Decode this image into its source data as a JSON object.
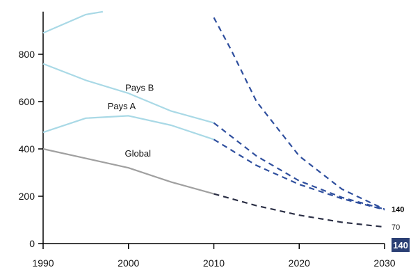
{
  "chart_data": {
    "type": "line",
    "title": "",
    "xlabel": "",
    "ylabel": "",
    "xlim": [
      1990,
      2030
    ],
    "ylim": [
      0,
      980
    ],
    "x_ticks": [
      1990,
      2000,
      2010,
      2020,
      2030
    ],
    "y_ticks": [
      0,
      200,
      400,
      600,
      800
    ],
    "grid": false,
    "legend": "none",
    "series": [
      {
        "name": "",
        "color": "#a9d9e6",
        "points": [
          [
            1990,
            890
          ],
          [
            1995,
            968
          ],
          [
            1997,
            980
          ]
        ],
        "projection_color": "#2f4f9e",
        "projection": [
          [
            2010,
            955
          ],
          [
            2012,
            820
          ],
          [
            2015,
            600
          ],
          [
            2020,
            370
          ],
          [
            2025,
            230
          ],
          [
            2030,
            145
          ]
        ]
      },
      {
        "name": "Pays B",
        "color": "#a9d9e6",
        "points": [
          [
            1990,
            760
          ],
          [
            1995,
            690
          ],
          [
            2000,
            635
          ],
          [
            2005,
            560
          ],
          [
            2010,
            510
          ]
        ],
        "projection_color": "#2f4f9e",
        "projection": [
          [
            2010,
            510
          ],
          [
            2015,
            370
          ],
          [
            2020,
            265
          ],
          [
            2025,
            195
          ],
          [
            2030,
            145
          ]
        ]
      },
      {
        "name": "Pays A",
        "color": "#a9d9e6",
        "points": [
          [
            1990,
            470
          ],
          [
            1995,
            530
          ],
          [
            2000,
            540
          ],
          [
            2005,
            500
          ],
          [
            2010,
            440
          ]
        ],
        "projection_color": "#2f4f9e",
        "projection": [
          [
            2010,
            440
          ],
          [
            2015,
            330
          ],
          [
            2020,
            250
          ],
          [
            2025,
            190
          ],
          [
            2030,
            143
          ]
        ]
      },
      {
        "name": "Global",
        "color": "#a0a0a0",
        "points": [
          [
            1990,
            400
          ],
          [
            1995,
            360
          ],
          [
            2000,
            320
          ],
          [
            2005,
            260
          ],
          [
            2010,
            210
          ]
        ],
        "projection_color": "#2b2f45",
        "projection": [
          [
            2010,
            210
          ],
          [
            2015,
            160
          ],
          [
            2020,
            120
          ],
          [
            2025,
            90
          ],
          [
            2030,
            70
          ]
        ]
      }
    ],
    "label_positions": [
      {
        "text": "Pays B",
        "x": 2001.3,
        "y": 645
      },
      {
        "text": "Pays A",
        "x": 1999.2,
        "y": 567
      },
      {
        "text": "Global",
        "x": 2001.1,
        "y": 368
      }
    ],
    "end_labels": [
      {
        "text": "140",
        "y": 145,
        "bold": true
      },
      {
        "text": "70",
        "y": 70,
        "bold": false
      }
    ],
    "badge": {
      "text": "140",
      "color": "#2b3f74"
    }
  }
}
